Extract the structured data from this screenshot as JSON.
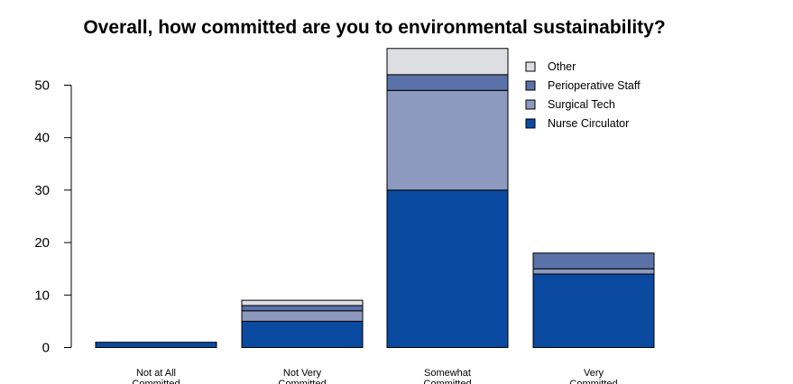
{
  "chart_data": {
    "type": "bar",
    "stacked": true,
    "title": "Overall, how committed are you to environmental sustainability?",
    "xlabel": "",
    "ylabel": "",
    "ylim": [
      0,
      57
    ],
    "yticks": [
      0,
      10,
      20,
      30,
      40,
      50
    ],
    "grid": false,
    "legend_position": "top-right",
    "categories": [
      [
        "Not at All",
        "Committed"
      ],
      [
        "Not Very",
        "Committed"
      ],
      [
        "Somewhat",
        "Committed"
      ],
      [
        "Very",
        "Committed"
      ]
    ],
    "series": [
      {
        "name": "Nurse Circulator",
        "color": "#0a4aa0",
        "values": [
          1,
          5,
          30,
          14
        ]
      },
      {
        "name": "Surgical Tech",
        "color": "#8c9ac0",
        "values": [
          0,
          2,
          19,
          1
        ]
      },
      {
        "name": "Perioperative Staff",
        "color": "#5a72a8",
        "values": [
          0,
          1,
          3,
          3
        ]
      },
      {
        "name": "Other",
        "color": "#dcdee2",
        "values": [
          0,
          1,
          5,
          0
        ]
      }
    ],
    "legend_order": [
      "Other",
      "Perioperative Staff",
      "Surgical Tech",
      "Nurse Circulator"
    ]
  }
}
